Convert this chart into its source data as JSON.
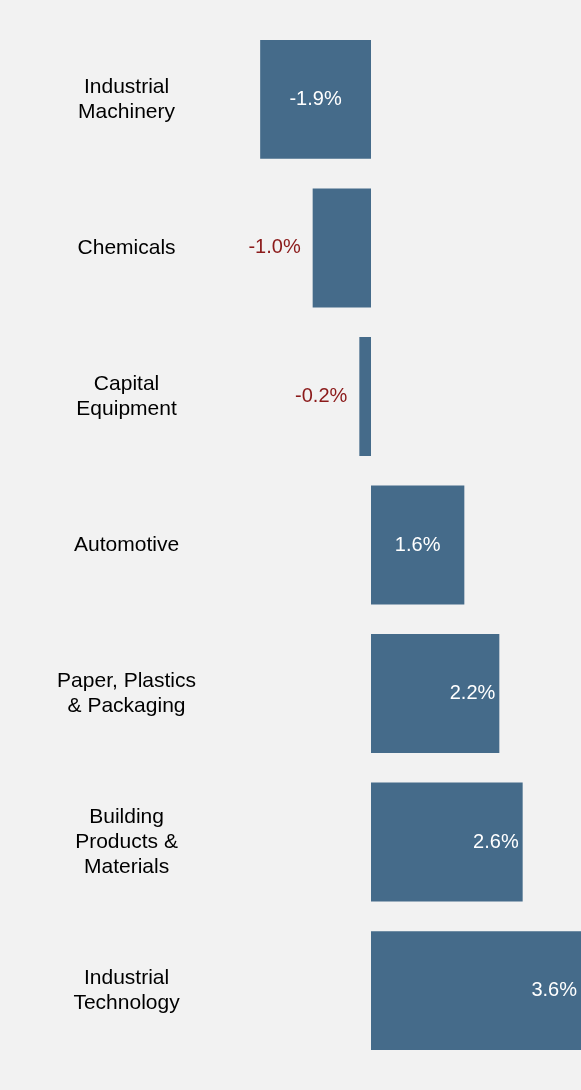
{
  "chart_data": {
    "type": "bar",
    "orientation": "horizontal",
    "categories": [
      "Industrial Machinery",
      "Chemicals",
      "Capital Equipment",
      "Automotive",
      "Paper, Plastics & Packaging",
      "Building Products & Materials",
      "Industrial Technology"
    ],
    "values": [
      -1.9,
      -1.0,
      -0.2,
      1.6,
      2.2,
      2.6,
      3.6
    ],
    "value_labels": [
      "-1.9%",
      "-1.0%",
      "-0.2%",
      "1.6%",
      "2.2%",
      "2.6%",
      "3.6%"
    ],
    "color": "#456b8a",
    "legend": false,
    "tick_labels": "y"
  }
}
